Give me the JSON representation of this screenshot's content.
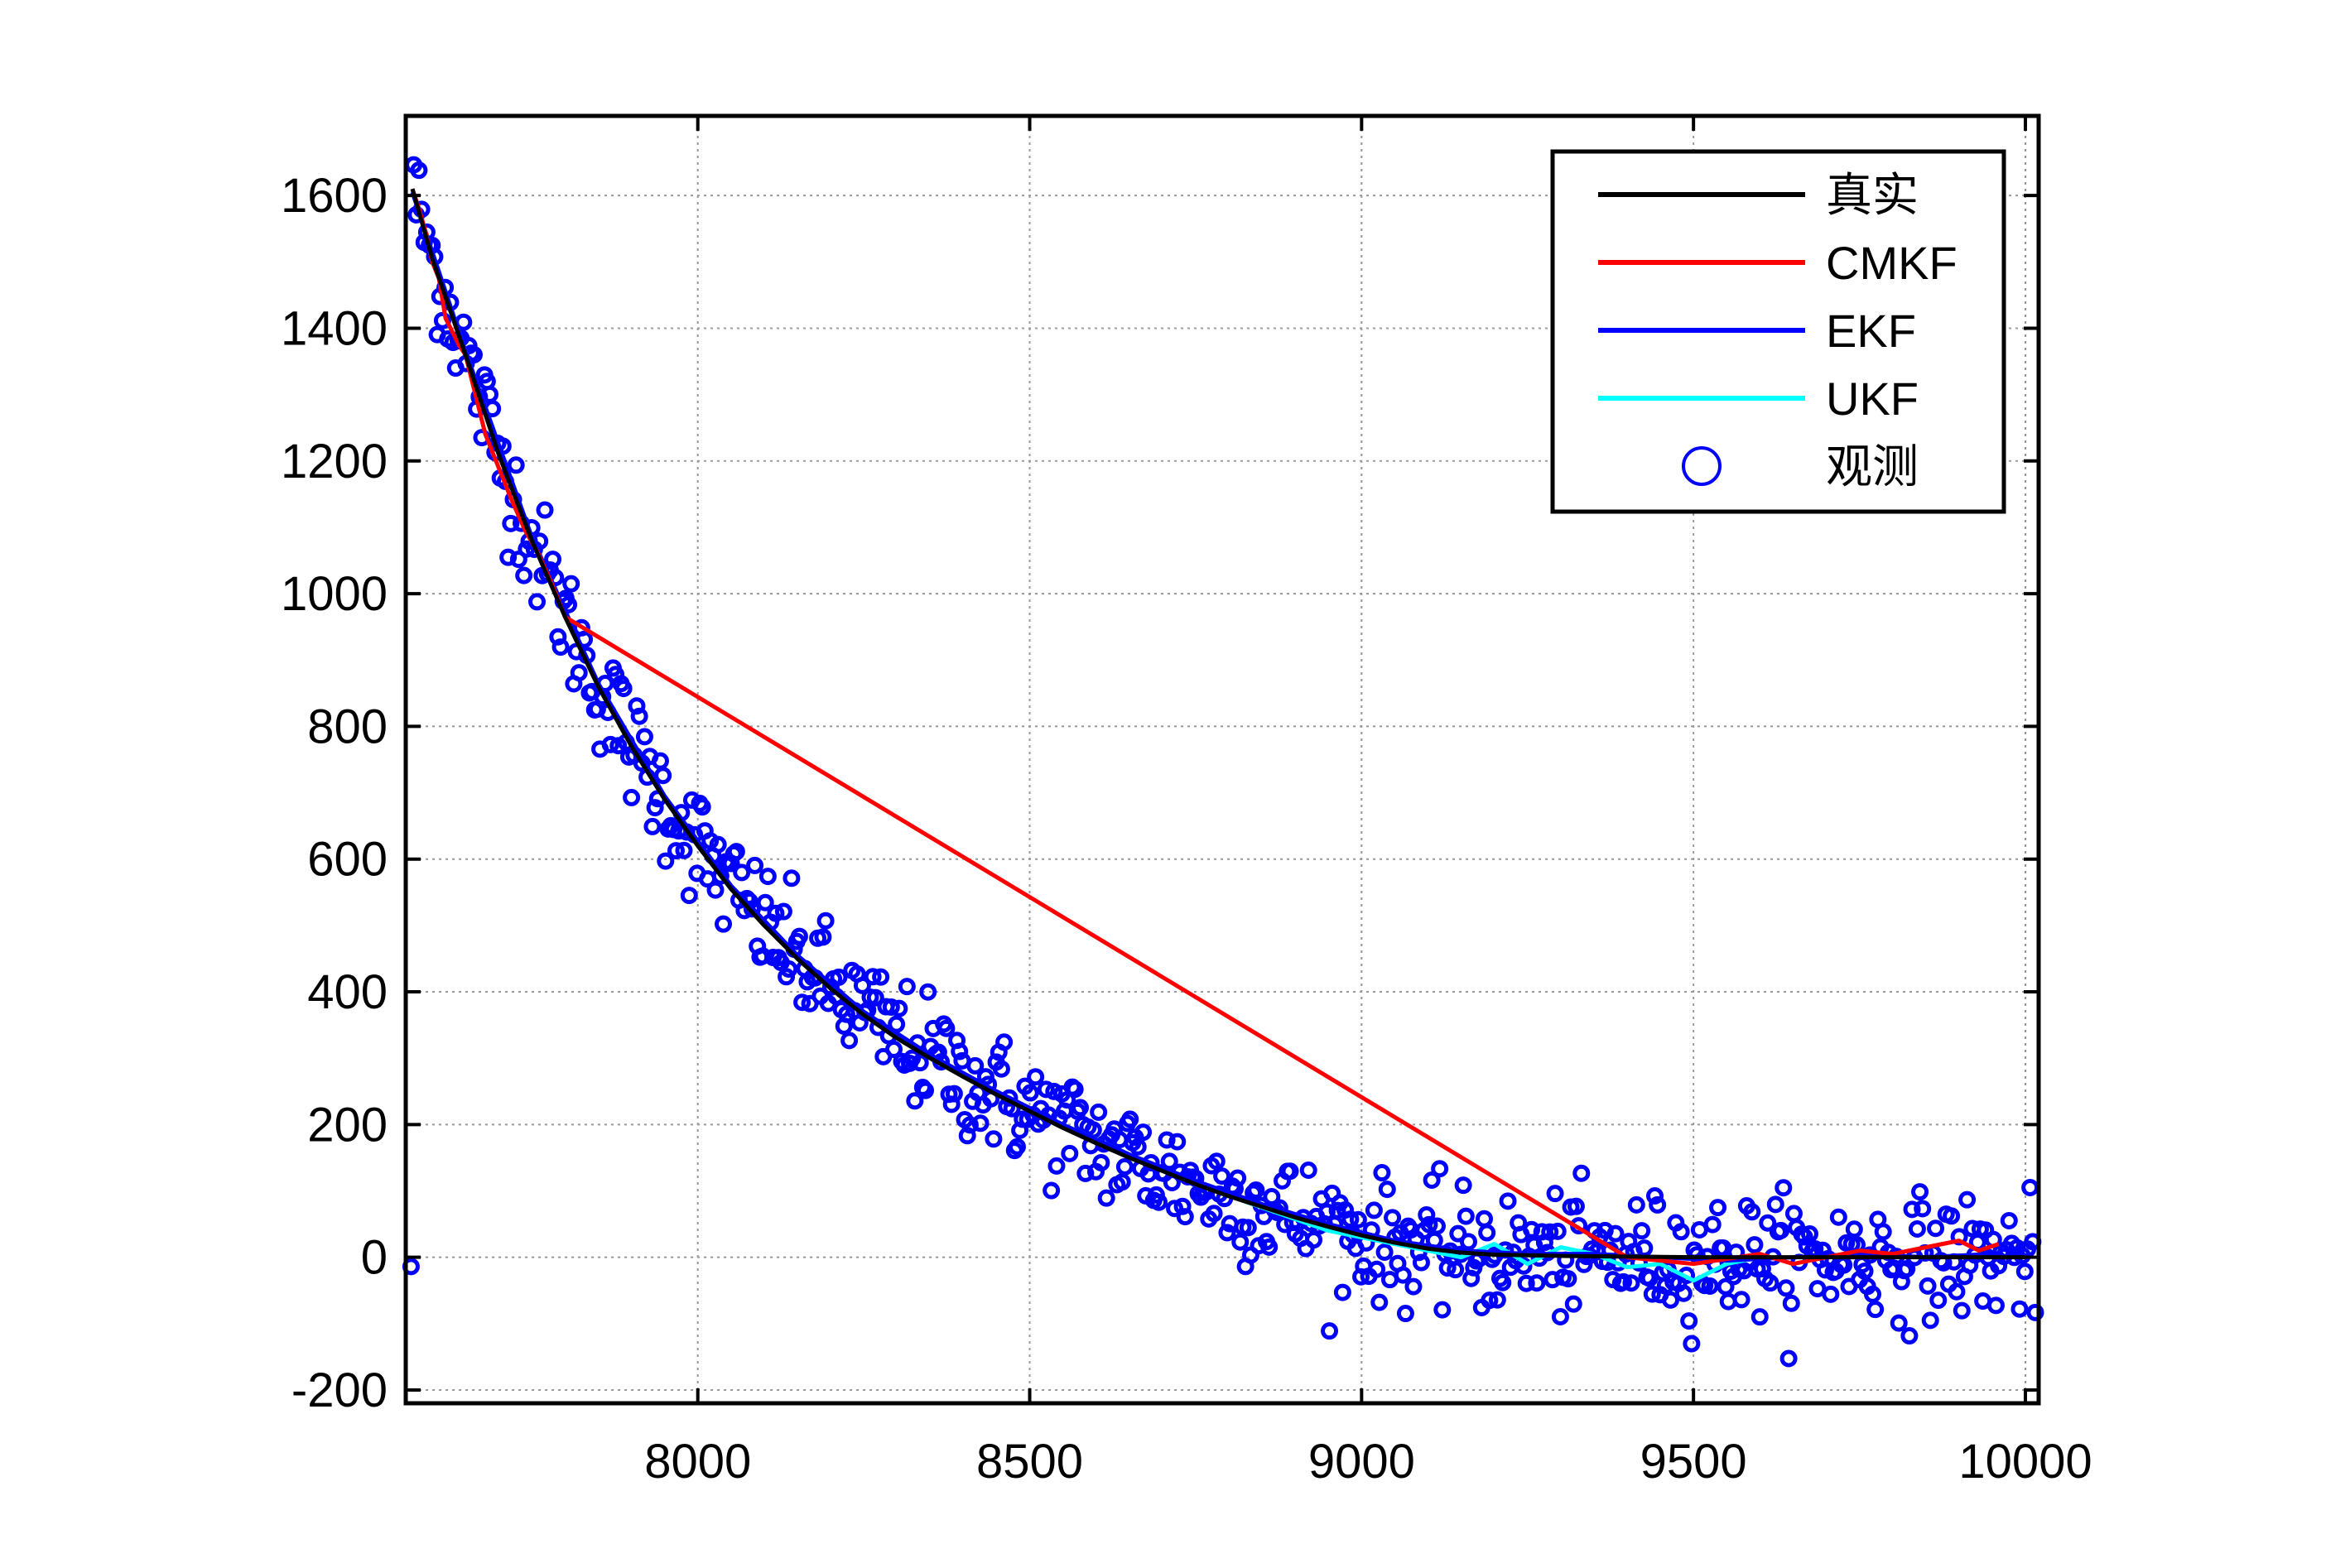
{
  "chart_data": {
    "type": "line",
    "title": "",
    "xlabel": "",
    "ylabel": "",
    "xlim": [
      7560,
      10020
    ],
    "ylim": [
      -220,
      1720
    ],
    "grid": true,
    "legend_position": "top-right",
    "x_ticks": [
      8000,
      8500,
      9000,
      9500,
      10000
    ],
    "y_ticks": [
      -200,
      0,
      200,
      400,
      600,
      800,
      1000,
      1200,
      1400,
      1600
    ],
    "x_tick_labels": [
      "8000",
      "8500",
      "9000",
      "9500",
      "10000"
    ],
    "y_tick_labels": [
      "-200",
      "0",
      "200",
      "400",
      "600",
      "800",
      "1000",
      "1200",
      "1400",
      "1600"
    ],
    "legend": [
      {
        "label": "真实",
        "color": "#000000",
        "marker": "line"
      },
      {
        "label": "CMKF",
        "color": "#ff0000",
        "marker": "line"
      },
      {
        "label": "EKF",
        "color": "#0000ff",
        "marker": "line"
      },
      {
        "label": "UKF",
        "color": "#00ffff",
        "marker": "line"
      },
      {
        "label": "观测",
        "color": "#0000ff",
        "marker": "circle"
      }
    ],
    "series": [
      {
        "name": "真实",
        "color": "#000000",
        "x": [
          7570,
          7600,
          7650,
          7700,
          7750,
          7800,
          7850,
          7900,
          7950,
          8000,
          8050,
          8100,
          8150,
          8200,
          8250,
          8300,
          8350,
          8400,
          8450,
          8500,
          8550,
          8600,
          8650,
          8700,
          8750,
          8800,
          8850,
          8900,
          8950,
          9000,
          9050,
          9100,
          9150,
          9200,
          9300,
          9400,
          9500,
          9600,
          9700,
          9800,
          9900,
          10000
        ],
        "y": [
          1610,
          1505,
          1360,
          1210,
          1080,
          965,
          860,
          770,
          690,
          620,
          555,
          500,
          450,
          405,
          365,
          330,
          300,
          272,
          245,
          220,
          195,
          172,
          150,
          130,
          110,
          92,
          76,
          60,
          46,
          33,
          22,
          13,
          7,
          4,
          2,
          1,
          0,
          0,
          0,
          0,
          0,
          0
        ]
      },
      {
        "name": "CMKF",
        "color": "#ff0000",
        "x": [
          7570,
          7580,
          7590,
          7600,
          7610,
          7620,
          7630,
          7640,
          7650,
          7665,
          7680,
          7700,
          7720,
          7740,
          7760,
          7780,
          7800,
          9400,
          9500,
          9600,
          9650,
          9700,
          9750,
          9800,
          9850,
          9900,
          9930,
          9960
        ],
        "y": [
          1610,
          1580,
          1545,
          1500,
          1475,
          1415,
          1395,
          1375,
          1360,
          1300,
          1240,
          1190,
          1140,
          1095,
          1060,
          1015,
          965,
          0,
          -10,
          5,
          -10,
          0,
          10,
          5,
          15,
          25,
          10,
          20
        ]
      },
      {
        "name": "EKF",
        "color": "#0000ff",
        "x": [
          7570,
          7650,
          7750,
          7850,
          7950,
          8050,
          8150,
          8250,
          8350,
          8450,
          8550,
          8650,
          8750,
          8850,
          8950,
          9050,
          9150,
          9250,
          9350,
          9450,
          9550,
          9650,
          9750,
          9850,
          9950
        ],
        "y": [
          1605,
          1365,
          1085,
          865,
          695,
          560,
          455,
          370,
          305,
          250,
          200,
          155,
          115,
          80,
          50,
          25,
          10,
          5,
          5,
          0,
          -5,
          0,
          5,
          0,
          5
        ]
      },
      {
        "name": "UKF",
        "color": "#00ffff",
        "x": [
          7570,
          7650,
          7750,
          7850,
          7950,
          8050,
          8150,
          8250,
          8350,
          8450,
          8550,
          8650,
          8750,
          8850,
          8950,
          9050,
          9100,
          9150,
          9200,
          9250,
          9300,
          9350,
          9400,
          9450,
          9500,
          9550,
          9600
        ],
        "y": [
          1605,
          1365,
          1085,
          860,
          690,
          555,
          450,
          365,
          300,
          245,
          200,
          155,
          110,
          75,
          40,
          20,
          10,
          0,
          20,
          -10,
          15,
          5,
          -15,
          -10,
          -35,
          -10,
          0
        ]
      }
    ],
    "observations": {
      "name": "观测",
      "color": "#0000ff",
      "note_count": "dense noisy measurements around truth (std approx 50)"
    }
  }
}
